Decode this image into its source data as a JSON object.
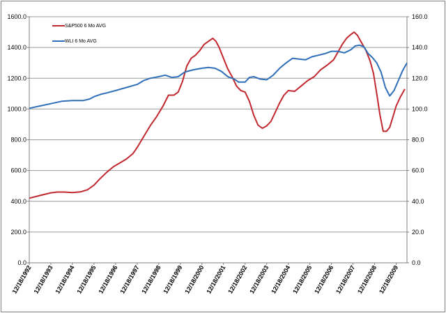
{
  "chart_data": {
    "type": "line",
    "title": "",
    "left_axis": {
      "ylim": [
        0,
        1600
      ],
      "ticks": [
        "0.0",
        "200.0",
        "400.0",
        "600.0",
        "800.0",
        "1000.0",
        "1200.0",
        "1400.0",
        "1600.0"
      ]
    },
    "right_axis": {
      "ylim": [
        0,
        160
      ],
      "ticks": [
        "0.0",
        "20.0",
        "40.0",
        "60.0",
        "80.0",
        "100.0",
        "120.0",
        "140.0",
        "160.0"
      ]
    },
    "x_ticks": [
      "12/18/1992",
      "12/18/1993",
      "12/18/1994",
      "12/18/1995",
      "12/18/1996",
      "12/18/1997",
      "12/18/1998",
      "12/18/1999",
      "12/18/2000",
      "12/18/2001",
      "12/18/2002",
      "12/18/2003",
      "12/18/2004",
      "12/18/2005",
      "12/18/2006",
      "12/18/2007",
      "12/18/2008",
      "12/18/2009"
    ],
    "grid": true,
    "legend_position": "top-left",
    "series": [
      {
        "name": "S&P500 6 Mo AVG",
        "axis": "left",
        "color": "#c0282e",
        "points": [
          [
            0,
            420
          ],
          [
            0.5,
            438
          ],
          [
            1.0,
            455
          ],
          [
            1.3,
            460
          ],
          [
            1.6,
            460
          ],
          [
            2.0,
            457
          ],
          [
            2.4,
            462
          ],
          [
            2.7,
            475
          ],
          [
            3.0,
            505
          ],
          [
            3.3,
            550
          ],
          [
            3.6,
            590
          ],
          [
            3.9,
            625
          ],
          [
            4.2,
            650
          ],
          [
            4.5,
            675
          ],
          [
            4.8,
            710
          ],
          [
            5.0,
            750
          ],
          [
            5.3,
            820
          ],
          [
            5.6,
            890
          ],
          [
            5.9,
            950
          ],
          [
            6.2,
            1020
          ],
          [
            6.45,
            1090
          ],
          [
            6.7,
            1090
          ],
          [
            6.9,
            1110
          ],
          [
            7.1,
            1180
          ],
          [
            7.3,
            1280
          ],
          [
            7.5,
            1330
          ],
          [
            7.7,
            1350
          ],
          [
            7.9,
            1380
          ],
          [
            8.1,
            1420
          ],
          [
            8.3,
            1440
          ],
          [
            8.5,
            1460
          ],
          [
            8.65,
            1440
          ],
          [
            8.8,
            1400
          ],
          [
            9.0,
            1330
          ],
          [
            9.2,
            1260
          ],
          [
            9.4,
            1210
          ],
          [
            9.6,
            1150
          ],
          [
            9.8,
            1120
          ],
          [
            10.0,
            1110
          ],
          [
            10.2,
            1050
          ],
          [
            10.4,
            960
          ],
          [
            10.6,
            895
          ],
          [
            10.8,
            875
          ],
          [
            11.0,
            890
          ],
          [
            11.2,
            920
          ],
          [
            11.4,
            980
          ],
          [
            11.6,
            1040
          ],
          [
            11.8,
            1090
          ],
          [
            12.0,
            1120
          ],
          [
            12.3,
            1115
          ],
          [
            12.6,
            1150
          ],
          [
            12.9,
            1185
          ],
          [
            13.2,
            1210
          ],
          [
            13.5,
            1255
          ],
          [
            13.8,
            1285
          ],
          [
            14.1,
            1320
          ],
          [
            14.3,
            1370
          ],
          [
            14.5,
            1420
          ],
          [
            14.7,
            1460
          ],
          [
            14.9,
            1485
          ],
          [
            15.05,
            1500
          ],
          [
            15.2,
            1480
          ],
          [
            15.4,
            1430
          ],
          [
            15.6,
            1380
          ],
          [
            15.8,
            1310
          ],
          [
            15.95,
            1230
          ],
          [
            16.1,
            1100
          ],
          [
            16.25,
            960
          ],
          [
            16.4,
            855
          ],
          [
            16.55,
            855
          ],
          [
            16.7,
            880
          ],
          [
            16.85,
            950
          ],
          [
            17.0,
            1020
          ],
          [
            17.2,
            1080
          ],
          [
            17.4,
            1130
          ]
        ]
      },
      {
        "name": "WLI 6 Mo AVG",
        "axis": "right",
        "color": "#2e6eb8",
        "points": [
          [
            0,
            100.5
          ],
          [
            0.5,
            102
          ],
          [
            1.0,
            103.5
          ],
          [
            1.5,
            105
          ],
          [
            2.0,
            105.5
          ],
          [
            2.5,
            105.5
          ],
          [
            2.8,
            106.5
          ],
          [
            3.0,
            108
          ],
          [
            3.3,
            109.5
          ],
          [
            3.6,
            110.5
          ],
          [
            4.0,
            112
          ],
          [
            4.5,
            114
          ],
          [
            5.0,
            116
          ],
          [
            5.3,
            118.5
          ],
          [
            5.6,
            120
          ],
          [
            6.0,
            121
          ],
          [
            6.3,
            122
          ],
          [
            6.6,
            120.5
          ],
          [
            6.9,
            121
          ],
          [
            7.2,
            124
          ],
          [
            7.6,
            125.5
          ],
          [
            8.0,
            126.5
          ],
          [
            8.3,
            127
          ],
          [
            8.6,
            126.5
          ],
          [
            8.9,
            124.5
          ],
          [
            9.2,
            121
          ],
          [
            9.5,
            119.5
          ],
          [
            9.7,
            117.5
          ],
          [
            10.0,
            117.5
          ],
          [
            10.2,
            120.5
          ],
          [
            10.4,
            121
          ],
          [
            10.7,
            119.5
          ],
          [
            11.0,
            119
          ],
          [
            11.3,
            122
          ],
          [
            11.6,
            126.5
          ],
          [
            11.9,
            130
          ],
          [
            12.2,
            133
          ],
          [
            12.5,
            132.5
          ],
          [
            12.8,
            132
          ],
          [
            13.1,
            134
          ],
          [
            13.4,
            135
          ],
          [
            13.7,
            136
          ],
          [
            14.0,
            137.5
          ],
          [
            14.3,
            137.5
          ],
          [
            14.6,
            136.5
          ],
          [
            14.9,
            138.5
          ],
          [
            15.1,
            141
          ],
          [
            15.3,
            141.5
          ],
          [
            15.5,
            140.5
          ],
          [
            15.7,
            136
          ],
          [
            15.9,
            133.5
          ],
          [
            16.1,
            130
          ],
          [
            16.3,
            124
          ],
          [
            16.5,
            114
          ],
          [
            16.7,
            108.5
          ],
          [
            16.9,
            112
          ],
          [
            17.1,
            118.5
          ],
          [
            17.3,
            125
          ],
          [
            17.5,
            130
          ]
        ]
      }
    ]
  }
}
